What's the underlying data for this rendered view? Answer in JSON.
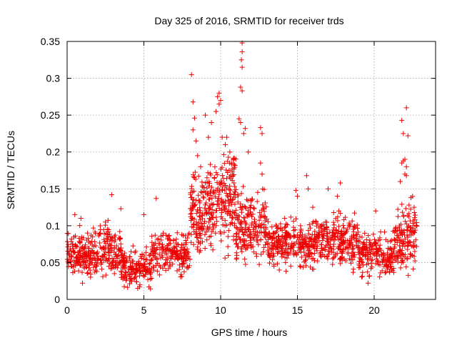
{
  "chart_data": {
    "type": "scatter",
    "title": "Day 325 of 2016, SRMTID for receiver trds",
    "xlabel": "GPS time / hours",
    "ylabel": "SRMTID / TECUs",
    "xlim": [
      0,
      24
    ],
    "ylim": [
      0,
      0.35
    ],
    "xticks": [
      "0",
      "5",
      "10",
      "15",
      "20"
    ],
    "yticks": [
      "0",
      "0.05",
      "0.1",
      "0.15",
      "0.2",
      "0.25",
      "0.3",
      "0.35"
    ],
    "grid": true,
    "marker": "plus",
    "color": "#ee0000",
    "segments": [
      {
        "x0": 0.0,
        "x1": 1.5,
        "base": 0.062,
        "spread": 0.04,
        "count": 140
      },
      {
        "x0": 1.5,
        "x1": 3.5,
        "base": 0.065,
        "spread": 0.045,
        "count": 170
      },
      {
        "x0": 3.5,
        "x1": 5.5,
        "base": 0.045,
        "spread": 0.035,
        "count": 170
      },
      {
        "x0": 5.5,
        "x1": 8.0,
        "base": 0.062,
        "spread": 0.04,
        "count": 200
      },
      {
        "x0": 8.0,
        "x1": 9.0,
        "base": 0.12,
        "spread": 0.08,
        "count": 110
      },
      {
        "x0": 9.0,
        "x1": 11.0,
        "base": 0.13,
        "spread": 0.09,
        "count": 220
      },
      {
        "x0": 11.0,
        "x1": 13.0,
        "base": 0.1,
        "spread": 0.07,
        "count": 190
      },
      {
        "x0": 13.0,
        "x1": 16.5,
        "base": 0.075,
        "spread": 0.045,
        "count": 300
      },
      {
        "x0": 16.5,
        "x1": 19.0,
        "base": 0.08,
        "spread": 0.05,
        "count": 220
      },
      {
        "x0": 19.0,
        "x1": 21.3,
        "base": 0.06,
        "spread": 0.04,
        "count": 190
      },
      {
        "x0": 21.3,
        "x1": 22.8,
        "base": 0.085,
        "spread": 0.06,
        "count": 140
      }
    ],
    "outliers": [
      {
        "x": 0.5,
        "y": 0.115
      },
      {
        "x": 0.9,
        "y": 0.11
      },
      {
        "x": 1.0,
        "y": 0.022
      },
      {
        "x": 2.9,
        "y": 0.142
      },
      {
        "x": 2.5,
        "y": 0.105
      },
      {
        "x": 3.5,
        "y": 0.123
      },
      {
        "x": 5.0,
        "y": 0.115
      },
      {
        "x": 5.8,
        "y": 0.137
      },
      {
        "x": 4.6,
        "y": 0.015
      },
      {
        "x": 8.1,
        "y": 0.305
      },
      {
        "x": 8.2,
        "y": 0.268
      },
      {
        "x": 8.3,
        "y": 0.246
      },
      {
        "x": 8.2,
        "y": 0.23
      },
      {
        "x": 8.4,
        "y": 0.215
      },
      {
        "x": 9.0,
        "y": 0.25
      },
      {
        "x": 9.4,
        "y": 0.24
      },
      {
        "x": 9.7,
        "y": 0.255
      },
      {
        "x": 9.8,
        "y": 0.275
      },
      {
        "x": 9.9,
        "y": 0.28
      },
      {
        "x": 10.0,
        "y": 0.27
      },
      {
        "x": 9.9,
        "y": 0.265
      },
      {
        "x": 10.4,
        "y": 0.22
      },
      {
        "x": 10.3,
        "y": 0.21
      },
      {
        "x": 10.6,
        "y": 0.2
      },
      {
        "x": 11.4,
        "y": 0.348
      },
      {
        "x": 11.4,
        "y": 0.336
      },
      {
        "x": 11.35,
        "y": 0.325
      },
      {
        "x": 11.4,
        "y": 0.315
      },
      {
        "x": 11.3,
        "y": 0.288
      },
      {
        "x": 11.4,
        "y": 0.283
      },
      {
        "x": 11.2,
        "y": 0.245
      },
      {
        "x": 11.3,
        "y": 0.24
      },
      {
        "x": 11.6,
        "y": 0.232
      },
      {
        "x": 11.5,
        "y": 0.225
      },
      {
        "x": 11.8,
        "y": 0.2
      },
      {
        "x": 12.6,
        "y": 0.233
      },
      {
        "x": 12.7,
        "y": 0.225
      },
      {
        "x": 12.6,
        "y": 0.185
      },
      {
        "x": 12.7,
        "y": 0.17
      },
      {
        "x": 15.6,
        "y": 0.168
      },
      {
        "x": 15.7,
        "y": 0.15
      },
      {
        "x": 14.9,
        "y": 0.148
      },
      {
        "x": 15.0,
        "y": 0.14
      },
      {
        "x": 16.0,
        "y": 0.125
      },
      {
        "x": 17.8,
        "y": 0.158
      },
      {
        "x": 17.0,
        "y": 0.15
      },
      {
        "x": 17.6,
        "y": 0.14
      },
      {
        "x": 19.6,
        "y": 0.022
      },
      {
        "x": 20.1,
        "y": 0.12
      },
      {
        "x": 21.8,
        "y": 0.243
      },
      {
        "x": 22.1,
        "y": 0.26
      },
      {
        "x": 21.9,
        "y": 0.225
      },
      {
        "x": 22.2,
        "y": 0.222
      },
      {
        "x": 21.9,
        "y": 0.188
      },
      {
        "x": 22.0,
        "y": 0.19
      },
      {
        "x": 21.8,
        "y": 0.185
      },
      {
        "x": 22.1,
        "y": 0.18
      },
      {
        "x": 22.0,
        "y": 0.17
      },
      {
        "x": 22.1,
        "y": 0.168
      },
      {
        "x": 21.7,
        "y": 0.16
      },
      {
        "x": 22.5,
        "y": 0.14
      },
      {
        "x": 22.4,
        "y": 0.138
      },
      {
        "x": 22.6,
        "y": 0.125
      },
      {
        "x": 8.5,
        "y": 0.195
      },
      {
        "x": 8.7,
        "y": 0.18
      },
      {
        "x": 9.2,
        "y": 0.22
      },
      {
        "x": 10.1,
        "y": 0.22
      },
      {
        "x": 10.7,
        "y": 0.185
      }
    ]
  }
}
